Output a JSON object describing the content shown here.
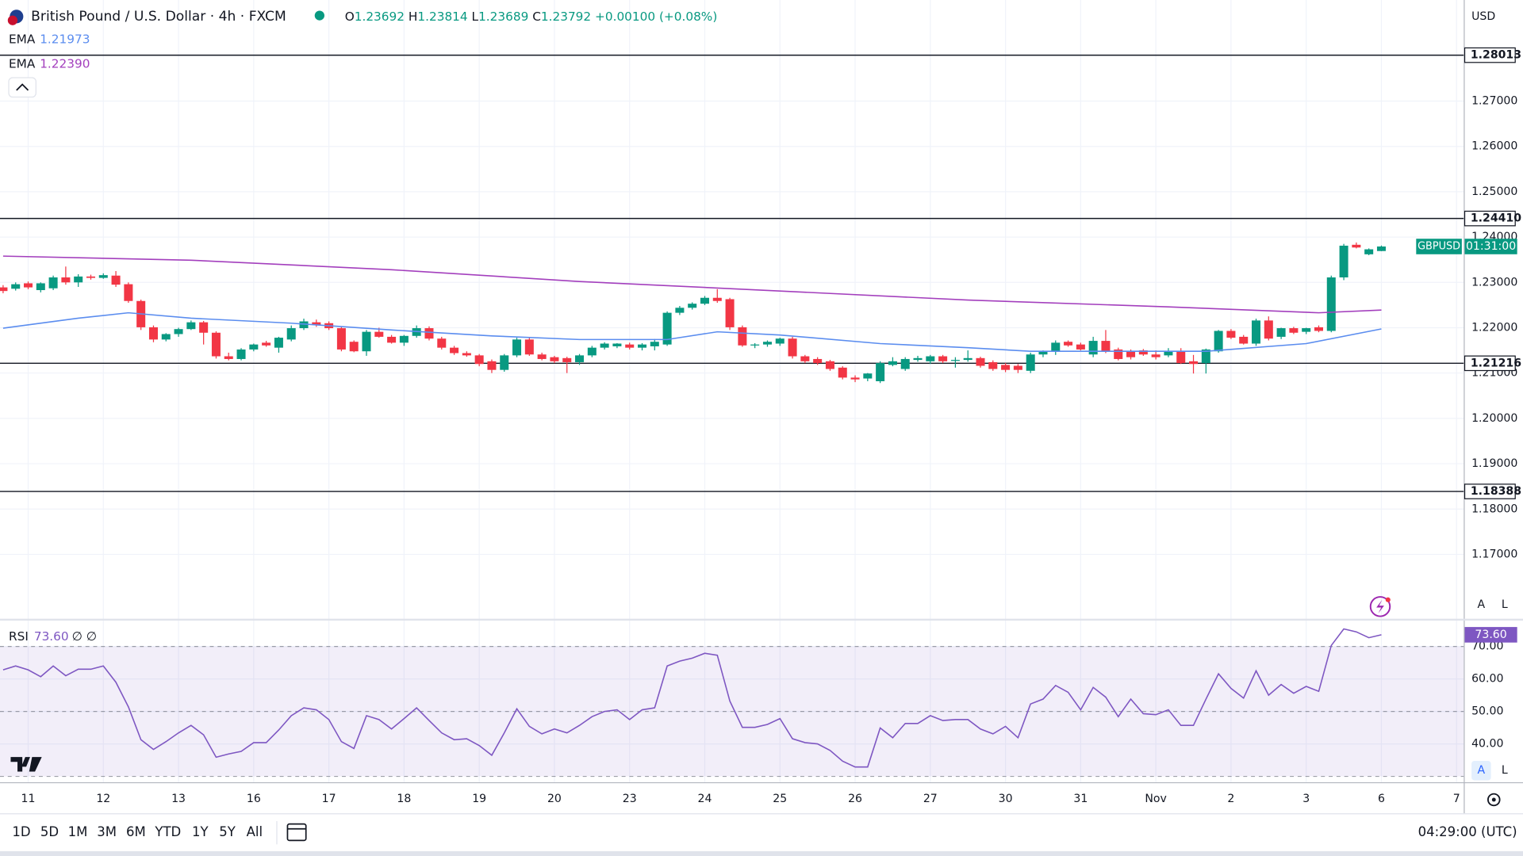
{
  "header": {
    "symbol": "British Pound / U.S. Dollar · 4h · FXCM",
    "ohlc": [
      {
        "key": "O",
        "value": "1.23692"
      },
      {
        "key": "H",
        "value": "1.23814"
      },
      {
        "key": "L",
        "value": "1.23689"
      },
      {
        "key": "C",
        "value": "1.23792"
      }
    ],
    "change": "+0.00100 (+0.08%)",
    "currency": "USD",
    "badge_symbol": "GBPUSD",
    "badge_timer": "01:31:00",
    "scale_buttons": [
      "A",
      "L"
    ]
  },
  "toolbar": {
    "ranges": [
      "1D",
      "5D",
      "1M",
      "3M",
      "6M",
      "YTD",
      "1Y",
      "5Y",
      "All"
    ],
    "time": "04:29:00 (UTC)"
  },
  "chart_data": [
    {
      "type": "candlestick",
      "up_color": "#089981",
      "down_color": "#f23645",
      "categories": [
        null,
        null,
        "11",
        null,
        null,
        null,
        null,
        null,
        "12",
        null,
        null,
        null,
        null,
        null,
        "13",
        null,
        null,
        null,
        null,
        null,
        "16",
        null,
        null,
        null,
        null,
        null,
        "17",
        null,
        null,
        null,
        null,
        null,
        "18",
        null,
        null,
        null,
        null,
        null,
        "19",
        null,
        null,
        null,
        null,
        null,
        "20",
        null,
        null,
        null,
        null,
        null,
        "23",
        null,
        null,
        null,
        null,
        null,
        "24",
        null,
        null,
        null,
        null,
        null,
        "25",
        null,
        null,
        null,
        null,
        null,
        "26",
        null,
        null,
        null,
        null,
        null,
        "27",
        null,
        null,
        null,
        null,
        null,
        "30",
        null,
        null,
        null,
        null,
        null,
        "31",
        null,
        null,
        null,
        null,
        null,
        "Nov",
        null,
        null,
        null,
        null,
        null,
        "2",
        null,
        null,
        null,
        null,
        null,
        "3",
        null,
        null,
        null,
        null,
        null,
        "6",
        null,
        null,
        null,
        null,
        null,
        "7"
      ],
      "open": [
        1.2289,
        1.2286,
        1.2298,
        1.2283,
        1.2287,
        1.2311,
        1.23,
        1.2313,
        1.231,
        1.2315,
        1.2296,
        1.2259,
        1.2201,
        1.2174,
        1.2186,
        1.2197,
        1.2212,
        1.2189,
        1.2137,
        1.2131,
        1.2152,
        1.2167,
        1.2156,
        1.2174,
        1.2199,
        1.2212,
        1.221,
        1.2199,
        1.2169,
        1.2148,
        1.2191,
        1.218,
        1.2167,
        1.2182,
        1.2199,
        1.2176,
        1.2156,
        1.2144,
        1.2139,
        1.2126,
        1.2107,
        1.2139,
        1.2174,
        1.2141,
        1.2135,
        1.2133,
        1.2124,
        1.2139,
        1.2156,
        1.2159,
        1.2163,
        1.2156,
        1.2159,
        1.2163,
        1.2233,
        1.2244,
        1.2253,
        1.2266,
        1.2263,
        1.2201,
        1.2161,
        1.2163,
        1.2165,
        1.2176,
        1.2137,
        1.2131,
        1.2126,
        1.2112,
        1.209,
        1.2088,
        1.2082,
        1.2118,
        1.2109,
        1.2129,
        1.2126,
        1.2137,
        1.2129,
        1.2129,
        1.2133,
        1.2124,
        1.2118,
        1.2116,
        1.2105,
        1.2141,
        1.2148,
        1.2169,
        1.2163,
        1.2141,
        1.2171,
        1.2152,
        1.2148,
        1.215,
        1.2141,
        1.2139,
        1.2148,
        1.2126,
        1.2122,
        1.2148,
        1.2193,
        1.218,
        1.2165,
        1.2216,
        1.218,
        1.2199,
        1.2191,
        1.2201,
        1.2193,
        1.2311,
        1.2383,
        1.2362,
        1.23692,
        null,
        null,
        null,
        null,
        null,
        null
      ],
      "high": [
        1.2294,
        1.23,
        1.2302,
        1.23,
        1.2315,
        1.2335,
        1.2318,
        1.2317,
        1.232,
        1.2325,
        1.23,
        1.2262,
        1.2205,
        1.2188,
        1.22,
        1.2216,
        1.2215,
        1.2192,
        1.2145,
        1.2155,
        1.2165,
        1.2171,
        1.218,
        1.2205,
        1.222,
        1.2218,
        1.2214,
        1.2202,
        1.2172,
        1.2195,
        1.22,
        1.2184,
        1.2184,
        1.2205,
        1.2203,
        1.218,
        1.216,
        1.2148,
        1.2142,
        1.213,
        1.2142,
        1.2178,
        1.2178,
        1.2145,
        1.2138,
        1.2136,
        1.2142,
        1.216,
        1.2168,
        1.2166,
        1.2167,
        1.2166,
        1.2175,
        1.2236,
        1.2248,
        1.2256,
        1.227,
        1.2285,
        1.2266,
        1.2205,
        1.2166,
        1.2172,
        1.2178,
        1.218,
        1.214,
        1.2135,
        1.2129,
        1.2115,
        1.2095,
        1.21,
        1.2126,
        1.2135,
        1.2135,
        1.2138,
        1.214,
        1.214,
        1.2135,
        1.215,
        1.2136,
        1.2128,
        1.2122,
        1.212,
        1.2145,
        1.215,
        1.2172,
        1.2172,
        1.2167,
        1.218,
        1.2195,
        1.2156,
        1.2152,
        1.2153,
        1.215,
        1.2155,
        1.2155,
        1.214,
        1.2154,
        1.2195,
        1.2197,
        1.2184,
        1.222,
        1.2225,
        1.22,
        1.2202,
        1.22,
        1.2205,
        1.2315,
        1.2385,
        1.2388,
        1.2375,
        1.23814,
        null,
        null,
        null,
        null,
        null,
        null
      ],
      "low": [
        1.2276,
        1.2282,
        1.2285,
        1.2278,
        1.2283,
        1.2295,
        1.229,
        1.2306,
        1.2308,
        1.229,
        1.2255,
        1.2195,
        1.2168,
        1.217,
        1.218,
        1.2195,
        1.2163,
        1.2132,
        1.2128,
        1.2128,
        1.2148,
        1.2158,
        1.2145,
        1.217,
        1.2195,
        1.2202,
        1.2195,
        1.2148,
        1.2146,
        1.2138,
        1.2178,
        1.2165,
        1.216,
        1.2178,
        1.2172,
        1.2152,
        1.214,
        1.2136,
        1.2115,
        1.21,
        1.2103,
        1.2135,
        1.2138,
        1.2128,
        1.2122,
        1.21,
        1.2118,
        1.2135,
        1.2152,
        1.2155,
        1.2152,
        1.215,
        1.215,
        1.216,
        1.2228,
        1.224,
        1.225,
        1.2255,
        1.2195,
        1.2158,
        1.2155,
        1.2158,
        1.216,
        1.2132,
        1.2122,
        1.2118,
        1.2105,
        1.2086,
        1.208,
        1.2082,
        1.2078,
        1.2115,
        1.2105,
        1.2125,
        1.212,
        1.2122,
        1.2112,
        1.2125,
        1.2112,
        1.2105,
        1.2102,
        1.21,
        1.21,
        1.2135,
        1.214,
        1.2158,
        1.215,
        1.2135,
        1.2144,
        1.2128,
        1.213,
        1.2138,
        1.213,
        1.2135,
        1.212,
        1.2099,
        1.2099,
        1.2145,
        1.2175,
        1.2163,
        1.216,
        1.2172,
        1.2175,
        1.2186,
        1.2186,
        1.219,
        1.219,
        1.2305,
        1.2375,
        1.236,
        1.23689,
        null,
        null,
        null,
        null,
        null,
        null
      ],
      "close": [
        1.2281,
        1.2296,
        1.2289,
        1.2298,
        1.2311,
        1.23,
        1.2313,
        1.231,
        1.2316,
        1.2295,
        1.2259,
        1.2201,
        1.2174,
        1.2186,
        1.2197,
        1.2212,
        1.2189,
        1.2137,
        1.2131,
        1.2152,
        1.2163,
        1.2161,
        1.2178,
        1.2199,
        1.2214,
        1.2206,
        1.2199,
        1.2152,
        1.2148,
        1.2191,
        1.218,
        1.2167,
        1.2182,
        1.2199,
        1.2176,
        1.2156,
        1.2144,
        1.2139,
        1.212,
        1.2107,
        1.2139,
        1.2174,
        1.2141,
        1.2131,
        1.2126,
        1.2124,
        1.2139,
        1.2156,
        1.2165,
        1.2165,
        1.2156,
        1.2163,
        1.2169,
        1.2233,
        1.2244,
        1.2253,
        1.2266,
        1.2259,
        1.2201,
        1.2161,
        1.2163,
        1.2169,
        1.2176,
        1.2137,
        1.2126,
        1.2122,
        1.2109,
        1.209,
        1.2086,
        1.2099,
        1.2122,
        1.2126,
        1.2131,
        1.2133,
        1.2137,
        1.2126,
        1.2129,
        1.2133,
        1.2116,
        1.2109,
        1.2107,
        1.2107,
        1.2141,
        1.2148,
        1.2167,
        1.2161,
        1.2152,
        1.2171,
        1.2148,
        1.2131,
        1.2135,
        1.2141,
        1.2135,
        1.2148,
        1.2122,
        1.212,
        1.2152,
        1.2193,
        1.2178,
        1.2165,
        1.2216,
        1.2176,
        1.2199,
        1.2189,
        1.2199,
        1.2193,
        1.2311,
        1.2381,
        1.2377,
        1.2373,
        1.23792,
        null,
        null,
        null,
        null,
        null,
        null
      ],
      "series": [
        {
          "name": "EMA",
          "legend_value": "1.21973",
          "color": "#5b8def",
          "x": [
            0,
            6,
            10,
            15,
            23,
            31,
            39,
            46,
            53,
            57,
            62,
            70,
            77,
            82,
            96,
            104,
            110
          ],
          "values": [
            1.2199,
            1.2221,
            1.2233,
            1.2221,
            1.221,
            1.2195,
            1.2182,
            1.2174,
            1.2174,
            1.2191,
            1.2184,
            1.2165,
            1.2156,
            1.2148,
            1.2148,
            1.2165,
            1.21973
          ]
        },
        {
          "name": "EMA",
          "legend_value": "1.22390",
          "color": "#a33fbd",
          "x": [
            0,
            15,
            31,
            46,
            62,
            77,
            93,
            105,
            110
          ],
          "values": [
            1.2358,
            1.2349,
            1.2328,
            1.2302,
            1.2281,
            1.2261,
            1.2246,
            1.2233,
            1.2239
          ]
        }
      ],
      "levels": [
        {
          "value": 1.28013,
          "label": "1.28013"
        },
        {
          "value": 1.2441,
          "label": "1.24410"
        },
        {
          "value": 1.21216,
          "label": "1.21216"
        },
        {
          "value": 1.18388,
          "label": "1.18388"
        }
      ],
      "ylim": [
        1.1557,
        1.2923
      ],
      "yticks": [
        {
          "value": 1.17,
          "label": "1.17000"
        },
        {
          "value": 1.18,
          "label": "1.18000"
        },
        {
          "value": 1.19,
          "label": "1.19000"
        },
        {
          "value": 1.2,
          "label": "1.20000"
        },
        {
          "value": 1.21,
          "label": "1.21000"
        },
        {
          "value": 1.22,
          "label": "1.22000"
        },
        {
          "value": 1.23,
          "label": "1.23000"
        },
        {
          "value": 1.24,
          "label": "1.24000"
        },
        {
          "value": 1.25,
          "label": "1.25000"
        },
        {
          "value": 1.26,
          "label": "1.26000"
        },
        {
          "value": 1.27,
          "label": "1.27000"
        }
      ],
      "grid": true
    },
    {
      "type": "line",
      "name": "RSI",
      "legend_value": "73.60",
      "legend_extra": "∅ ∅",
      "color": "#7e57c2",
      "categories": [
        null,
        null,
        "11",
        null,
        null,
        null,
        null,
        null,
        "12",
        null,
        null,
        null,
        null,
        null,
        "13",
        null,
        null,
        null,
        null,
        null,
        "16",
        null,
        null,
        null,
        null,
        null,
        "17",
        null,
        null,
        null,
        null,
        null,
        "18",
        null,
        null,
        null,
        null,
        null,
        "19",
        null,
        null,
        null,
        null,
        null,
        "20",
        null,
        null,
        null,
        null,
        null,
        "23",
        null,
        null,
        null,
        null,
        null,
        "24",
        null,
        null,
        null,
        null,
        null,
        "25",
        null,
        null,
        null,
        null,
        null,
        "26",
        null,
        null,
        null,
        null,
        null,
        "27",
        null,
        null,
        null,
        null,
        null,
        "30",
        null,
        null,
        null,
        null,
        null,
        "31",
        null,
        null,
        null,
        null,
        null,
        "Nov",
        null,
        null,
        null,
        null,
        null,
        "2",
        null,
        null,
        null,
        null,
        null,
        "3",
        null,
        null,
        null,
        null,
        null,
        "6",
        null,
        null,
        null,
        null,
        null,
        "7"
      ],
      "values": [
        62.8,
        64,
        62.8,
        60.7,
        64,
        61,
        63,
        63,
        64,
        59,
        51.4,
        41.3,
        38.3,
        40.7,
        43.4,
        45.7,
        42.8,
        35.9,
        36.9,
        37.7,
        40.4,
        40.4,
        44.3,
        48.7,
        51.1,
        50.5,
        47.5,
        40.7,
        38.6,
        48.7,
        47.5,
        44.6,
        47.8,
        51.1,
        47.2,
        43.4,
        41.3,
        41.6,
        39.5,
        36.5,
        43.4,
        50.8,
        45.4,
        43.1,
        44.6,
        43.4,
        45.7,
        48.4,
        50,
        50.5,
        47.5,
        50.5,
        51.1,
        64,
        65.5,
        66.4,
        67.9,
        67.3,
        53.2,
        45.1,
        45.1,
        46,
        47.8,
        41.6,
        40.4,
        40,
        38,
        34.7,
        32.9,
        32.9,
        44.9,
        41.9,
        46.3,
        46.3,
        48.7,
        47.2,
        47.5,
        47.5,
        44.6,
        43.1,
        45.4,
        41.9,
        52.3,
        53.8,
        58,
        55.9,
        50.5,
        57.4,
        54.4,
        48.4,
        53.8,
        49.3,
        49,
        50.5,
        45.7,
        45.7,
        53.8,
        61.6,
        57.1,
        54.1,
        62.5,
        55,
        58.3,
        55.6,
        57.7,
        56.2,
        70.3,
        75.4,
        74.5,
        72.7,
        73.6,
        null,
        null,
        null,
        null,
        null,
        null
      ],
      "bands": [
        70,
        50,
        30
      ],
      "ylim": [
        28.2,
        78.4
      ],
      "yticks": [
        {
          "value": 40,
          "label": "40.00"
        },
        {
          "value": 50,
          "label": "50.00"
        },
        {
          "value": 60,
          "label": "60.00"
        },
        {
          "value": 70,
          "label": "70.00"
        }
      ],
      "grid": true
    }
  ]
}
